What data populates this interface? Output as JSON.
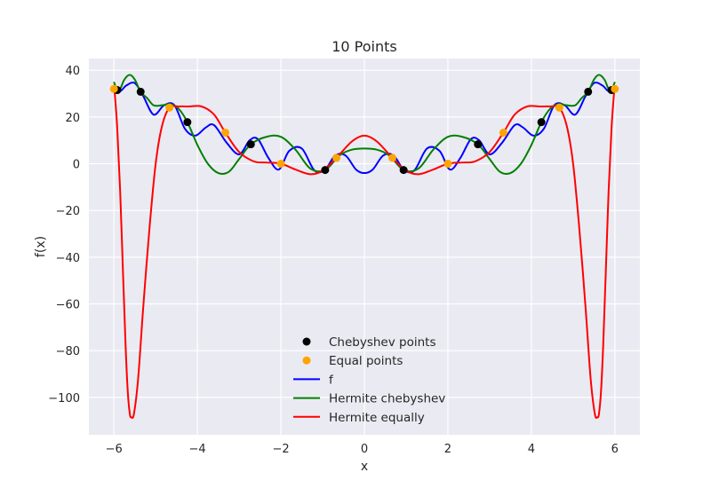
{
  "chart_data": {
    "type": "line",
    "title": "10 Points",
    "xlabel": "x",
    "ylabel": "f(x)",
    "xlim": [
      -6.6,
      6.6
    ],
    "ylim": [
      -116,
      45
    ],
    "xticks": [
      -6,
      -4,
      -2,
      0,
      2,
      4,
      6
    ],
    "yticks": [
      -100,
      -80,
      -60,
      -40,
      -20,
      0,
      20,
      40
    ],
    "xtick_labels": [
      "−6",
      "−4",
      "−2",
      "0",
      "2",
      "4",
      "6"
    ],
    "ytick_labels": [
      "−100",
      "−80",
      "−60",
      "−40",
      "−20",
      "0",
      "20",
      "40"
    ],
    "grid": true,
    "legend_position": "lower center",
    "background_color": "#eaeaf2",
    "series": [
      {
        "name": "Chebyshev points",
        "kind": "scatter",
        "color": "#000000",
        "x": [
          -5.92,
          -5.36,
          -4.24,
          -2.72,
          -0.94,
          0.94,
          2.72,
          4.24,
          5.36,
          5.92
        ],
        "y": [
          31.5,
          30.8,
          17.8,
          8.3,
          -2.7,
          -2.7,
          8.3,
          17.8,
          30.8,
          31.5
        ]
      },
      {
        "name": "Equal points",
        "kind": "scatter",
        "color": "#ffa500",
        "x": [
          -6.0,
          -4.67,
          -3.33,
          -2.0,
          -0.67,
          0.67,
          2.0,
          3.33,
          4.67,
          6.0
        ],
        "y": [
          32.0,
          24.0,
          13.3,
          0.0,
          2.5,
          2.5,
          0.0,
          13.3,
          24.0,
          32.0
        ]
      },
      {
        "name": "f",
        "kind": "line",
        "color": "#0000ff",
        "x": [
          0.0,
          0.2,
          0.45,
          0.7,
          0.95,
          1.2,
          1.5,
          1.8,
          2.05,
          2.3,
          2.55,
          2.75,
          3.0,
          3.3,
          3.6,
          3.8,
          4.05,
          4.3,
          4.55,
          4.8,
          5.05,
          5.3,
          5.5,
          5.7,
          5.85,
          6.0
        ],
        "y": [
          -4.0,
          -2.5,
          3.5,
          3.5,
          -2.7,
          -2.8,
          6.5,
          5.5,
          -2.5,
          2.5,
          10.5,
          10.0,
          4.0,
          9.0,
          16.5,
          15.5,
          12.0,
          15.0,
          25.0,
          25.0,
          21.0,
          29.0,
          34.5,
          33.5,
          31.0,
          31.5
        ]
      },
      {
        "name": "Hermite chebyshev",
        "kind": "line",
        "color": "#008000",
        "x": [
          0.0,
          0.3,
          0.6,
          0.94,
          1.3,
          1.65,
          2.0,
          2.35,
          2.72,
          3.0,
          3.25,
          3.5,
          3.75,
          4.0,
          4.24,
          4.45,
          4.65,
          4.85,
          5.05,
          5.2,
          5.36,
          5.5,
          5.62,
          5.75,
          5.85,
          5.92,
          5.97,
          6.0
        ],
        "y": [
          6.5,
          6.0,
          3.5,
          -2.7,
          -2.0,
          6.0,
          11.5,
          11.5,
          8.3,
          2.0,
          -3.5,
          -4.0,
          0.0,
          8.0,
          17.8,
          23.5,
          25.5,
          25.0,
          25.0,
          28.0,
          30.8,
          36.0,
          38.0,
          36.0,
          32.0,
          31.5,
          33.5,
          35.0
        ]
      },
      {
        "name": "Hermite equally",
        "kind": "line",
        "color": "#ff0000",
        "x": [
          0.0,
          0.3,
          0.67,
          1.0,
          1.3,
          1.65,
          2.0,
          2.35,
          2.65,
          3.0,
          3.33,
          3.6,
          3.9,
          4.2,
          4.45,
          4.67,
          4.85,
          5.0,
          5.15,
          5.3,
          5.42,
          5.52,
          5.58,
          5.62,
          5.67,
          5.72,
          5.78,
          5.85,
          5.92,
          5.98,
          6.0
        ],
        "y": [
          12.0,
          9.5,
          2.5,
          -3.0,
          -4.5,
          -2.5,
          0.0,
          0.5,
          1.0,
          5.0,
          13.3,
          21.0,
          24.5,
          24.5,
          24.5,
          24.0,
          16.0,
          0.0,
          -28.0,
          -62.0,
          -92.0,
          -107.0,
          -108.5,
          -107.0,
          -97.0,
          -78.0,
          -48.0,
          -12.0,
          15.0,
          30.0,
          32.0
        ]
      }
    ]
  }
}
